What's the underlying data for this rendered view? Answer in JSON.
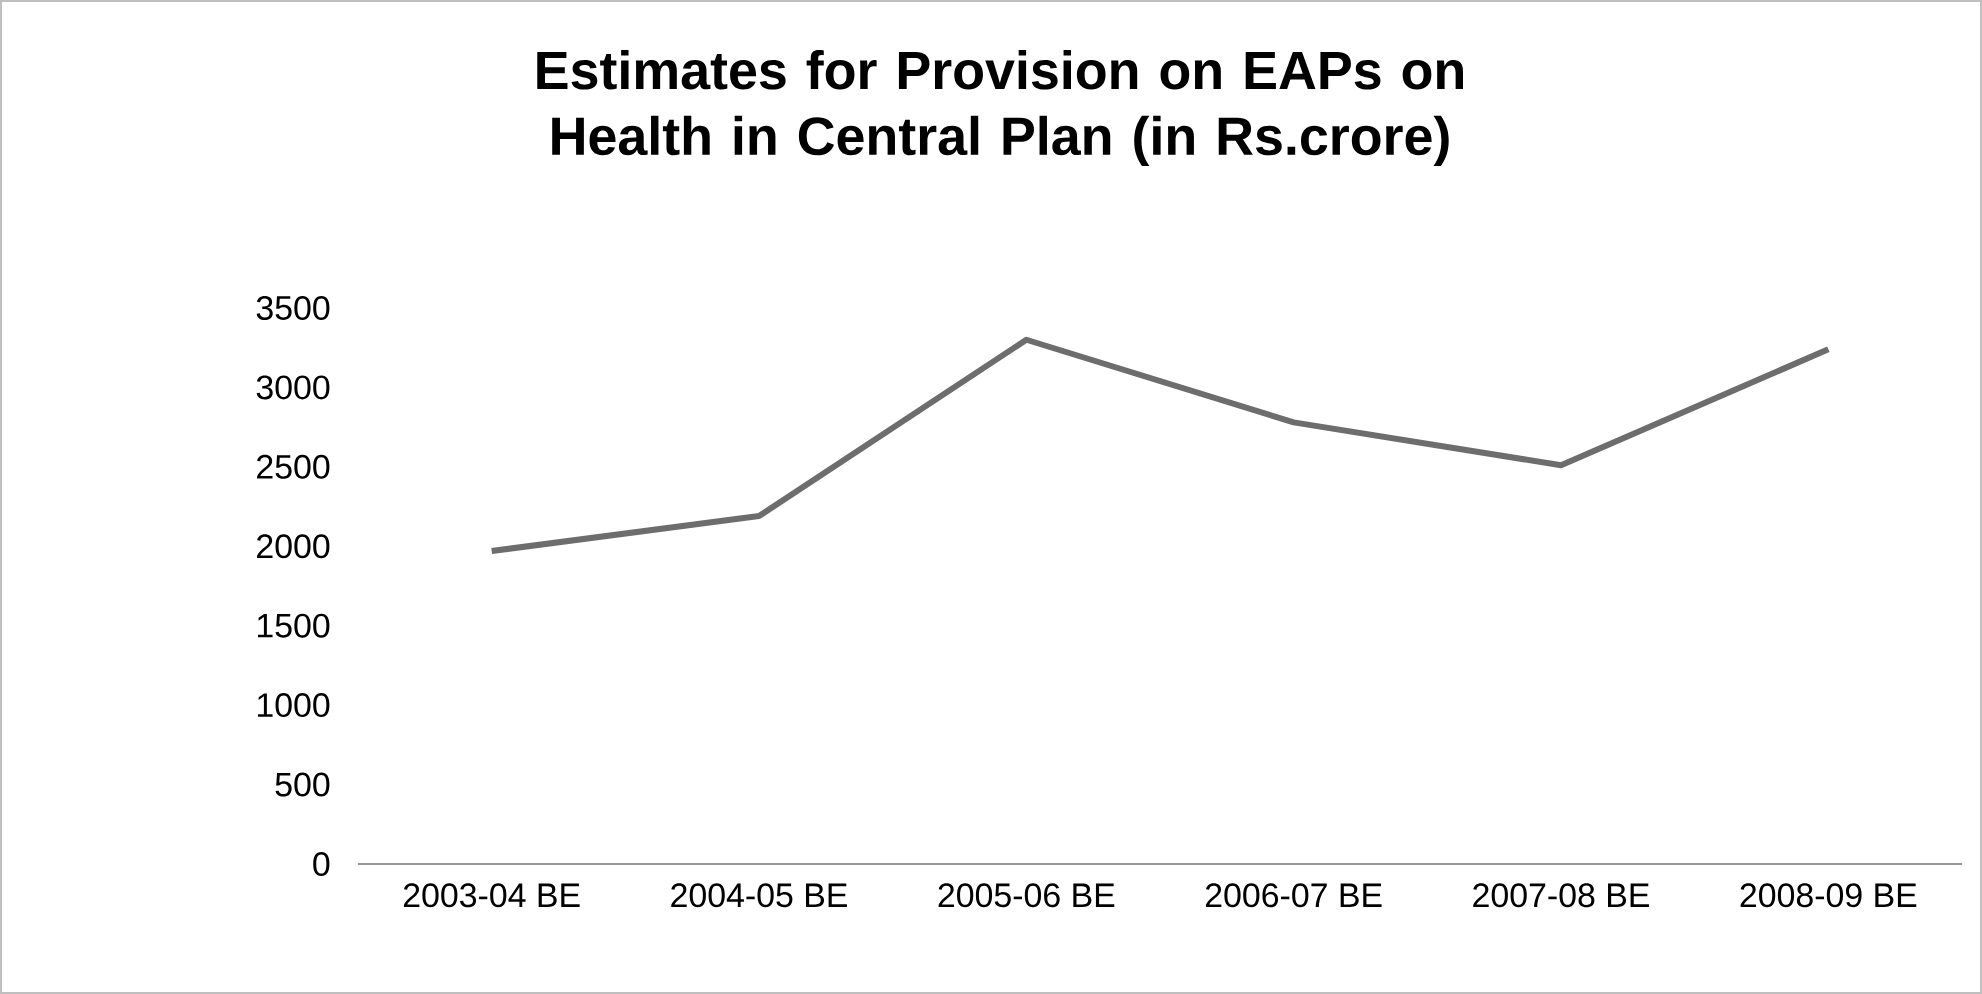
{
  "chart_data": {
    "type": "line",
    "title": "Estimates for Provision on EAPs on Health in Central Plan  (in Rs.crore)",
    "categories": [
      "2003-04 BE",
      "2004-05 BE",
      "2005-06 BE",
      "2006-07 BE",
      "2007-08 BE",
      "2008-09 BE"
    ],
    "series": [
      {
        "color": "#6d6d6d",
        "values": [
          1970,
          2190,
          3300,
          2780,
          2510,
          3240
        ]
      }
    ],
    "ylim": [
      0,
      3500
    ],
    "yticks": [
      0,
      500,
      1000,
      1500,
      2000,
      2500,
      3000,
      3500
    ],
    "grid": false,
    "marker": "none",
    "line_style": "solid"
  }
}
